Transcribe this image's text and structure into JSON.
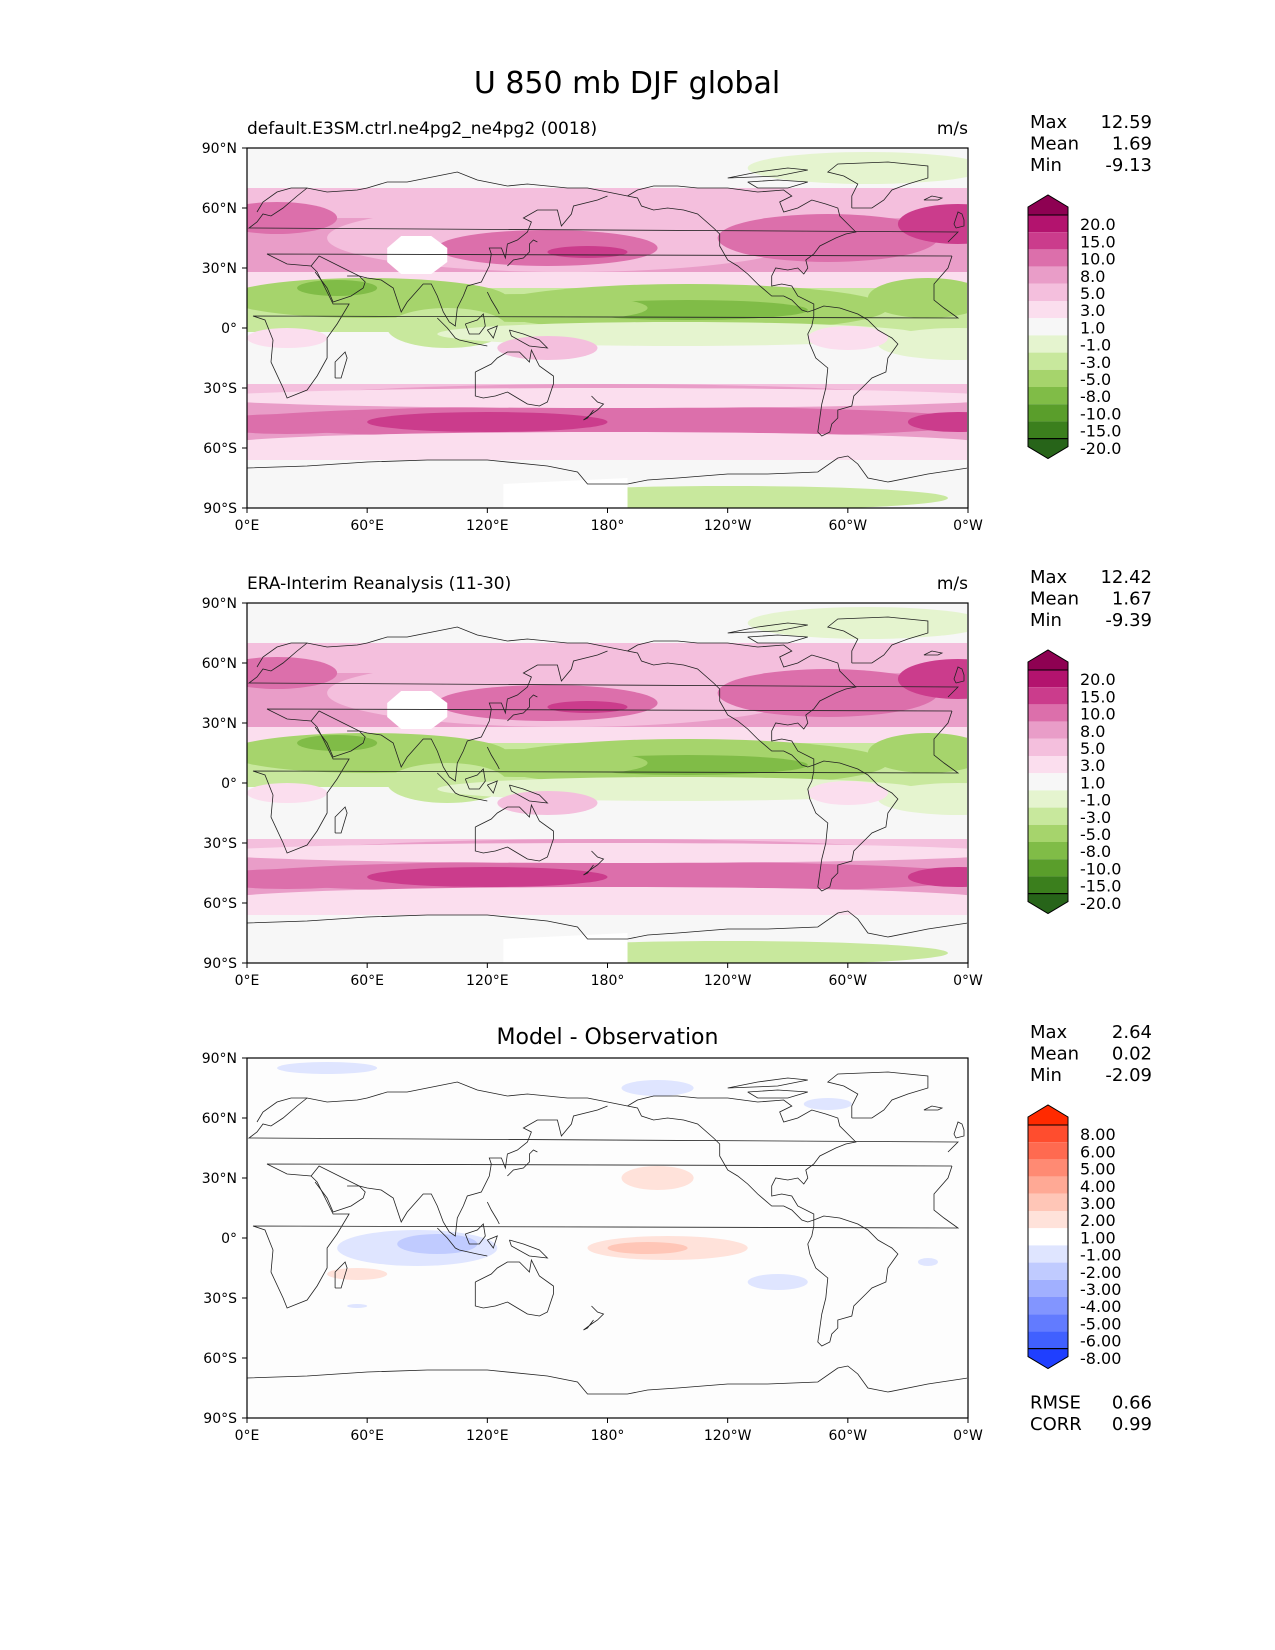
{
  "figure": {
    "title": "U 850 mb DJF global"
  },
  "axes": {
    "lat_ticks": [
      "90°N",
      "60°N",
      "30°N",
      "0°",
      "30°S",
      "60°S",
      "90°S"
    ],
    "lon_ticks": [
      "0°E",
      "60°E",
      "120°E",
      "180°",
      "120°W",
      "60°W",
      "0°W"
    ]
  },
  "panels": [
    {
      "id": "model",
      "title": "default.E3SM.ctrl.ne4pg2_ne4pg2 (0018)",
      "title_style": "left",
      "units": "m/s",
      "stats": [
        {
          "label": "Max",
          "value": "12.59"
        },
        {
          "label": "Mean",
          "value": "1.69"
        },
        {
          "label": "Min",
          "value": "-9.13"
        }
      ],
      "colorbar": "pg"
    },
    {
      "id": "obs",
      "title": "ERA-Interim Reanalysis (11-30)",
      "title_style": "left",
      "units": "m/s",
      "stats": [
        {
          "label": "Max",
          "value": "12.42"
        },
        {
          "label": "Mean",
          "value": "1.67"
        },
        {
          "label": "Min",
          "value": "-9.39"
        }
      ],
      "colorbar": "pg"
    },
    {
      "id": "diff",
      "title": "Model - Observation",
      "title_style": "center",
      "units": "",
      "stats": [
        {
          "label": "Max",
          "value": "2.64"
        },
        {
          "label": "Mean",
          "value": "0.02"
        },
        {
          "label": "Min",
          "value": "-2.09"
        }
      ],
      "extra_stats": [
        {
          "label": "RMSE",
          "value": "0.66"
        },
        {
          "label": "CORR",
          "value": "0.99"
        }
      ],
      "colorbar": "bwr"
    }
  ],
  "colorbars": {
    "pg": {
      "labels": [
        "20.0",
        "15.0",
        "10.0",
        "8.0",
        "5.0",
        "3.0",
        "1.0",
        "-1.0",
        "-3.0",
        "-5.0",
        "-8.0",
        "-10.0",
        "-15.0",
        "-20.0"
      ],
      "colors": [
        "#8e0152",
        "#b3136e",
        "#cb3c8c",
        "#dc6fab",
        "#e99dc8",
        "#f4bfdd",
        "#fbdeee",
        "#f7f7f7",
        "#e5f4cf",
        "#c8e89d",
        "#a6d46c",
        "#80bc47",
        "#5a9e2b",
        "#3b7f1d",
        "#276419"
      ]
    },
    "bwr": {
      "labels": [
        "8.00",
        "6.00",
        "5.00",
        "4.00",
        "3.00",
        "2.00",
        "1.00",
        "-1.00",
        "-2.00",
        "-3.00",
        "-4.00",
        "-5.00",
        "-6.00",
        "-8.00"
      ],
      "colors": [
        "#ff2a00",
        "#ff4d2e",
        "#ff6a50",
        "#ff8a73",
        "#ffa995",
        "#ffc6b7",
        "#ffe2da",
        "#ffffff",
        "#dfe5ff",
        "#c0cbff",
        "#a1b0ff",
        "#8295ff",
        "#627bff",
        "#4060ff",
        "#1f3fff"
      ]
    }
  }
}
